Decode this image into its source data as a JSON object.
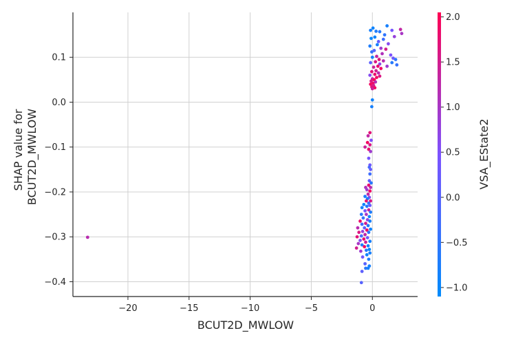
{
  "chart_data": {
    "type": "scatter",
    "title": "",
    "xlabel": "BCUT2D_MWLOW",
    "ylabel_lines": [
      "SHAP value for",
      "BCUT2D_MWLOW"
    ],
    "xlim": [
      -24.5,
      3.7
    ],
    "ylim": [
      -0.433,
      0.2
    ],
    "xticks": [
      -20,
      -15,
      -10,
      -5,
      0
    ],
    "xtick_labels": [
      "−20",
      "−15",
      "−10",
      "−5",
      "0"
    ],
    "yticks": [
      0.1,
      0.0,
      -0.1,
      -0.2,
      -0.3,
      -0.4
    ],
    "ytick_labels": [
      "0.1",
      "0.0",
      "−0.1",
      "−0.2",
      "−0.3",
      "−0.4"
    ],
    "grid": true,
    "colorbar": {
      "label": "VSA_EState2",
      "range": [
        -1.1,
        2.05
      ],
      "ticks": [
        2.0,
        1.5,
        1.0,
        0.5,
        0.0,
        -0.5,
        -1.0
      ],
      "tick_labels": [
        "2.0",
        "1.5",
        "1.0",
        "0.5",
        "0.0",
        "−0.5",
        "−1.0"
      ],
      "color_low": "#008bfb",
      "color_mid": "#7c52ff",
      "color_high": "#ff0052"
    },
    "points": [
      {
        "x": -23.3,
        "y": -0.301,
        "c": 1.2
      },
      {
        "x": 0.05,
        "y": 0.165,
        "c": -0.9
      },
      {
        "x": -0.15,
        "y": 0.16,
        "c": -0.8
      },
      {
        "x": 0.3,
        "y": 0.158,
        "c": -0.7
      },
      {
        "x": 0.6,
        "y": 0.157,
        "c": -0.6
      },
      {
        "x": 1.2,
        "y": 0.17,
        "c": -0.8
      },
      {
        "x": 1.6,
        "y": 0.16,
        "c": 0.4
      },
      {
        "x": 2.3,
        "y": 0.162,
        "c": 1.3
      },
      {
        "x": 2.4,
        "y": 0.153,
        "c": 1.0
      },
      {
        "x": 1.8,
        "y": 0.146,
        "c": 0.8
      },
      {
        "x": 1.0,
        "y": 0.15,
        "c": -0.5
      },
      {
        "x": 0.9,
        "y": 0.14,
        "c": -0.3
      },
      {
        "x": 0.2,
        "y": 0.145,
        "c": -0.9
      },
      {
        "x": -0.1,
        "y": 0.142,
        "c": -1.0
      },
      {
        "x": 0.5,
        "y": 0.135,
        "c": 0.2
      },
      {
        "x": 1.3,
        "y": 0.13,
        "c": 0.6
      },
      {
        "x": 0.4,
        "y": 0.128,
        "c": -0.8
      },
      {
        "x": -0.2,
        "y": 0.125,
        "c": -0.7
      },
      {
        "x": 0.7,
        "y": 0.12,
        "c": 0.9
      },
      {
        "x": 1.1,
        "y": 0.118,
        "c": 1.5
      },
      {
        "x": 0.15,
        "y": 0.115,
        "c": 0.0
      },
      {
        "x": -0.05,
        "y": 0.112,
        "c": -0.4
      },
      {
        "x": 0.8,
        "y": 0.108,
        "c": 1.1
      },
      {
        "x": 1.5,
        "y": 0.105,
        "c": 0.5
      },
      {
        "x": 0.35,
        "y": 0.102,
        "c": 1.3
      },
      {
        "x": 0.0,
        "y": 0.1,
        "c": -0.8
      },
      {
        "x": 1.7,
        "y": 0.098,
        "c": 0.3
      },
      {
        "x": 0.55,
        "y": 0.095,
        "c": 1.7
      },
      {
        "x": 1.9,
        "y": 0.095,
        "c": -0.5
      },
      {
        "x": 0.9,
        "y": 0.092,
        "c": 1.2
      },
      {
        "x": 1.6,
        "y": 0.088,
        "c": -0.6
      },
      {
        "x": 0.25,
        "y": 0.09,
        "c": 1.6
      },
      {
        "x": -0.15,
        "y": 0.088,
        "c": 0.1
      },
      {
        "x": 0.6,
        "y": 0.085,
        "c": 0.7
      },
      {
        "x": 2.0,
        "y": 0.083,
        "c": -0.4
      },
      {
        "x": 0.45,
        "y": 0.08,
        "c": 1.8
      },
      {
        "x": 0.1,
        "y": 0.078,
        "c": 1.4
      },
      {
        "x": 1.2,
        "y": 0.08,
        "c": 0.9
      },
      {
        "x": 0.7,
        "y": 0.075,
        "c": 1.9
      },
      {
        "x": 0.3,
        "y": 0.07,
        "c": 1.5
      },
      {
        "x": -0.05,
        "y": 0.068,
        "c": 1.7
      },
      {
        "x": 0.5,
        "y": 0.065,
        "c": 1.2
      },
      {
        "x": 0.2,
        "y": 0.062,
        "c": 1.8
      },
      {
        "x": -0.2,
        "y": 0.06,
        "c": 0.6
      },
      {
        "x": 0.6,
        "y": 0.058,
        "c": 1.6
      },
      {
        "x": 0.35,
        "y": 0.055,
        "c": 1.9
      },
      {
        "x": 0.0,
        "y": 0.052,
        "c": 1.3
      },
      {
        "x": 0.15,
        "y": 0.05,
        "c": 2.0
      },
      {
        "x": -0.1,
        "y": 0.047,
        "c": 1.6
      },
      {
        "x": 0.25,
        "y": 0.045,
        "c": 1.1
      },
      {
        "x": 0.05,
        "y": 0.042,
        "c": 1.8
      },
      {
        "x": -0.15,
        "y": 0.04,
        "c": 1.9
      },
      {
        "x": 0.1,
        "y": 0.037,
        "c": 1.5
      },
      {
        "x": -0.05,
        "y": 0.034,
        "c": 1.7
      },
      {
        "x": 0.2,
        "y": 0.032,
        "c": 1.9
      },
      {
        "x": 0.0,
        "y": 0.03,
        "c": 1.4
      },
      {
        "x": 0.0,
        "y": 0.005,
        "c": -0.9
      },
      {
        "x": -0.05,
        "y": -0.01,
        "c": -0.8
      },
      {
        "x": -0.2,
        "y": -0.068,
        "c": 1.7
      },
      {
        "x": -0.35,
        "y": -0.075,
        "c": 1.3
      },
      {
        "x": -0.1,
        "y": -0.085,
        "c": 0.5
      },
      {
        "x": -0.4,
        "y": -0.09,
        "c": 1.9
      },
      {
        "x": -0.2,
        "y": -0.095,
        "c": 1.6
      },
      {
        "x": -0.6,
        "y": -0.1,
        "c": 1.4
      },
      {
        "x": -0.3,
        "y": -0.105,
        "c": 1.8
      },
      {
        "x": -0.15,
        "y": -0.11,
        "c": 0.9
      },
      {
        "x": -0.3,
        "y": -0.125,
        "c": 0.4
      },
      {
        "x": -0.2,
        "y": -0.14,
        "c": 0.3
      },
      {
        "x": -0.25,
        "y": -0.145,
        "c": -0.2
      },
      {
        "x": -0.15,
        "y": -0.15,
        "c": 0.2
      },
      {
        "x": -0.2,
        "y": -0.16,
        "c": -0.3
      },
      {
        "x": -0.25,
        "y": -0.175,
        "c": 0.1
      },
      {
        "x": -0.1,
        "y": -0.18,
        "c": -0.6
      },
      {
        "x": -0.3,
        "y": -0.185,
        "c": 1.8
      },
      {
        "x": -0.15,
        "y": -0.19,
        "c": 1.2
      },
      {
        "x": -0.55,
        "y": -0.19,
        "c": 1.1
      },
      {
        "x": -0.45,
        "y": -0.195,
        "c": 0.9
      },
      {
        "x": -0.2,
        "y": -0.198,
        "c": 1.9
      },
      {
        "x": -0.35,
        "y": -0.205,
        "c": 1.3
      },
      {
        "x": -0.6,
        "y": -0.21,
        "c": -0.7
      },
      {
        "x": -0.25,
        "y": -0.212,
        "c": 0.6
      },
      {
        "x": -0.4,
        "y": -0.215,
        "c": -0.8
      },
      {
        "x": -0.15,
        "y": -0.22,
        "c": 1.6
      },
      {
        "x": -0.5,
        "y": -0.22,
        "c": 1.7
      },
      {
        "x": -0.3,
        "y": -0.225,
        "c": -0.5
      },
      {
        "x": -0.7,
        "y": -0.228,
        "c": -0.9
      },
      {
        "x": -0.2,
        "y": -0.23,
        "c": 0.2
      },
      {
        "x": -0.45,
        "y": -0.232,
        "c": -0.6
      },
      {
        "x": -0.85,
        "y": -0.235,
        "c": -0.8
      },
      {
        "x": -0.3,
        "y": -0.24,
        "c": 1.4
      },
      {
        "x": -0.6,
        "y": -0.242,
        "c": 0.4
      },
      {
        "x": -0.15,
        "y": -0.245,
        "c": -0.7
      },
      {
        "x": -0.9,
        "y": -0.25,
        "c": -0.6
      },
      {
        "x": -0.5,
        "y": -0.25,
        "c": 1.0
      },
      {
        "x": -0.25,
        "y": -0.255,
        "c": -0.9
      },
      {
        "x": -0.75,
        "y": -0.258,
        "c": -0.4
      },
      {
        "x": -0.4,
        "y": -0.262,
        "c": 0.7
      },
      {
        "x": -1.0,
        "y": -0.265,
        "c": 1.8
      },
      {
        "x": -0.2,
        "y": -0.265,
        "c": -0.8
      },
      {
        "x": -0.55,
        "y": -0.27,
        "c": 1.5
      },
      {
        "x": -0.85,
        "y": -0.272,
        "c": -0.3
      },
      {
        "x": -0.35,
        "y": -0.275,
        "c": -0.6
      },
      {
        "x": -0.65,
        "y": -0.28,
        "c": 0.1
      },
      {
        "x": -1.2,
        "y": -0.28,
        "c": 1.2
      },
      {
        "x": -0.15,
        "y": -0.283,
        "c": -0.9
      },
      {
        "x": -0.45,
        "y": -0.285,
        "c": 1.9
      },
      {
        "x": -0.8,
        "y": -0.288,
        "c": 0.8
      },
      {
        "x": -1.1,
        "y": -0.29,
        "c": 1.6
      },
      {
        "x": -0.3,
        "y": -0.29,
        "c": -0.5
      },
      {
        "x": -0.6,
        "y": -0.295,
        "c": 1.3
      },
      {
        "x": -0.9,
        "y": -0.298,
        "c": -0.2
      },
      {
        "x": -1.25,
        "y": -0.3,
        "c": 1.7
      },
      {
        "x": -0.4,
        "y": -0.302,
        "c": 0.3
      },
      {
        "x": -0.7,
        "y": -0.305,
        "c": 1.8
      },
      {
        "x": -1.0,
        "y": -0.308,
        "c": 0.6
      },
      {
        "x": -0.2,
        "y": -0.31,
        "c": -0.8
      },
      {
        "x": -0.55,
        "y": -0.312,
        "c": 1.4
      },
      {
        "x": -1.15,
        "y": -0.315,
        "c": 1.0
      },
      {
        "x": -0.85,
        "y": -0.318,
        "c": -0.7
      },
      {
        "x": -0.35,
        "y": -0.32,
        "c": -0.9
      },
      {
        "x": -0.65,
        "y": -0.322,
        "c": 1.9
      },
      {
        "x": -1.3,
        "y": -0.325,
        "c": 1.5
      },
      {
        "x": -0.25,
        "y": -0.328,
        "c": -1.0
      },
      {
        "x": -0.5,
        "y": -0.33,
        "c": -0.6
      },
      {
        "x": -0.95,
        "y": -0.332,
        "c": 0.9
      },
      {
        "x": -0.2,
        "y": -0.336,
        "c": -0.8
      },
      {
        "x": -0.45,
        "y": -0.34,
        "c": -0.9
      },
      {
        "x": -0.8,
        "y": -0.345,
        "c": 0.3
      },
      {
        "x": -0.3,
        "y": -0.35,
        "c": -0.7
      },
      {
        "x": -0.6,
        "y": -0.36,
        "c": 0.0
      },
      {
        "x": -0.25,
        "y": -0.365,
        "c": -0.8
      },
      {
        "x": -0.35,
        "y": -0.37,
        "c": -0.9
      },
      {
        "x": -0.55,
        "y": -0.37,
        "c": -0.6
      },
      {
        "x": -0.85,
        "y": -0.377,
        "c": 0.1
      },
      {
        "x": -0.9,
        "y": -0.402,
        "c": 0.0
      }
    ]
  }
}
